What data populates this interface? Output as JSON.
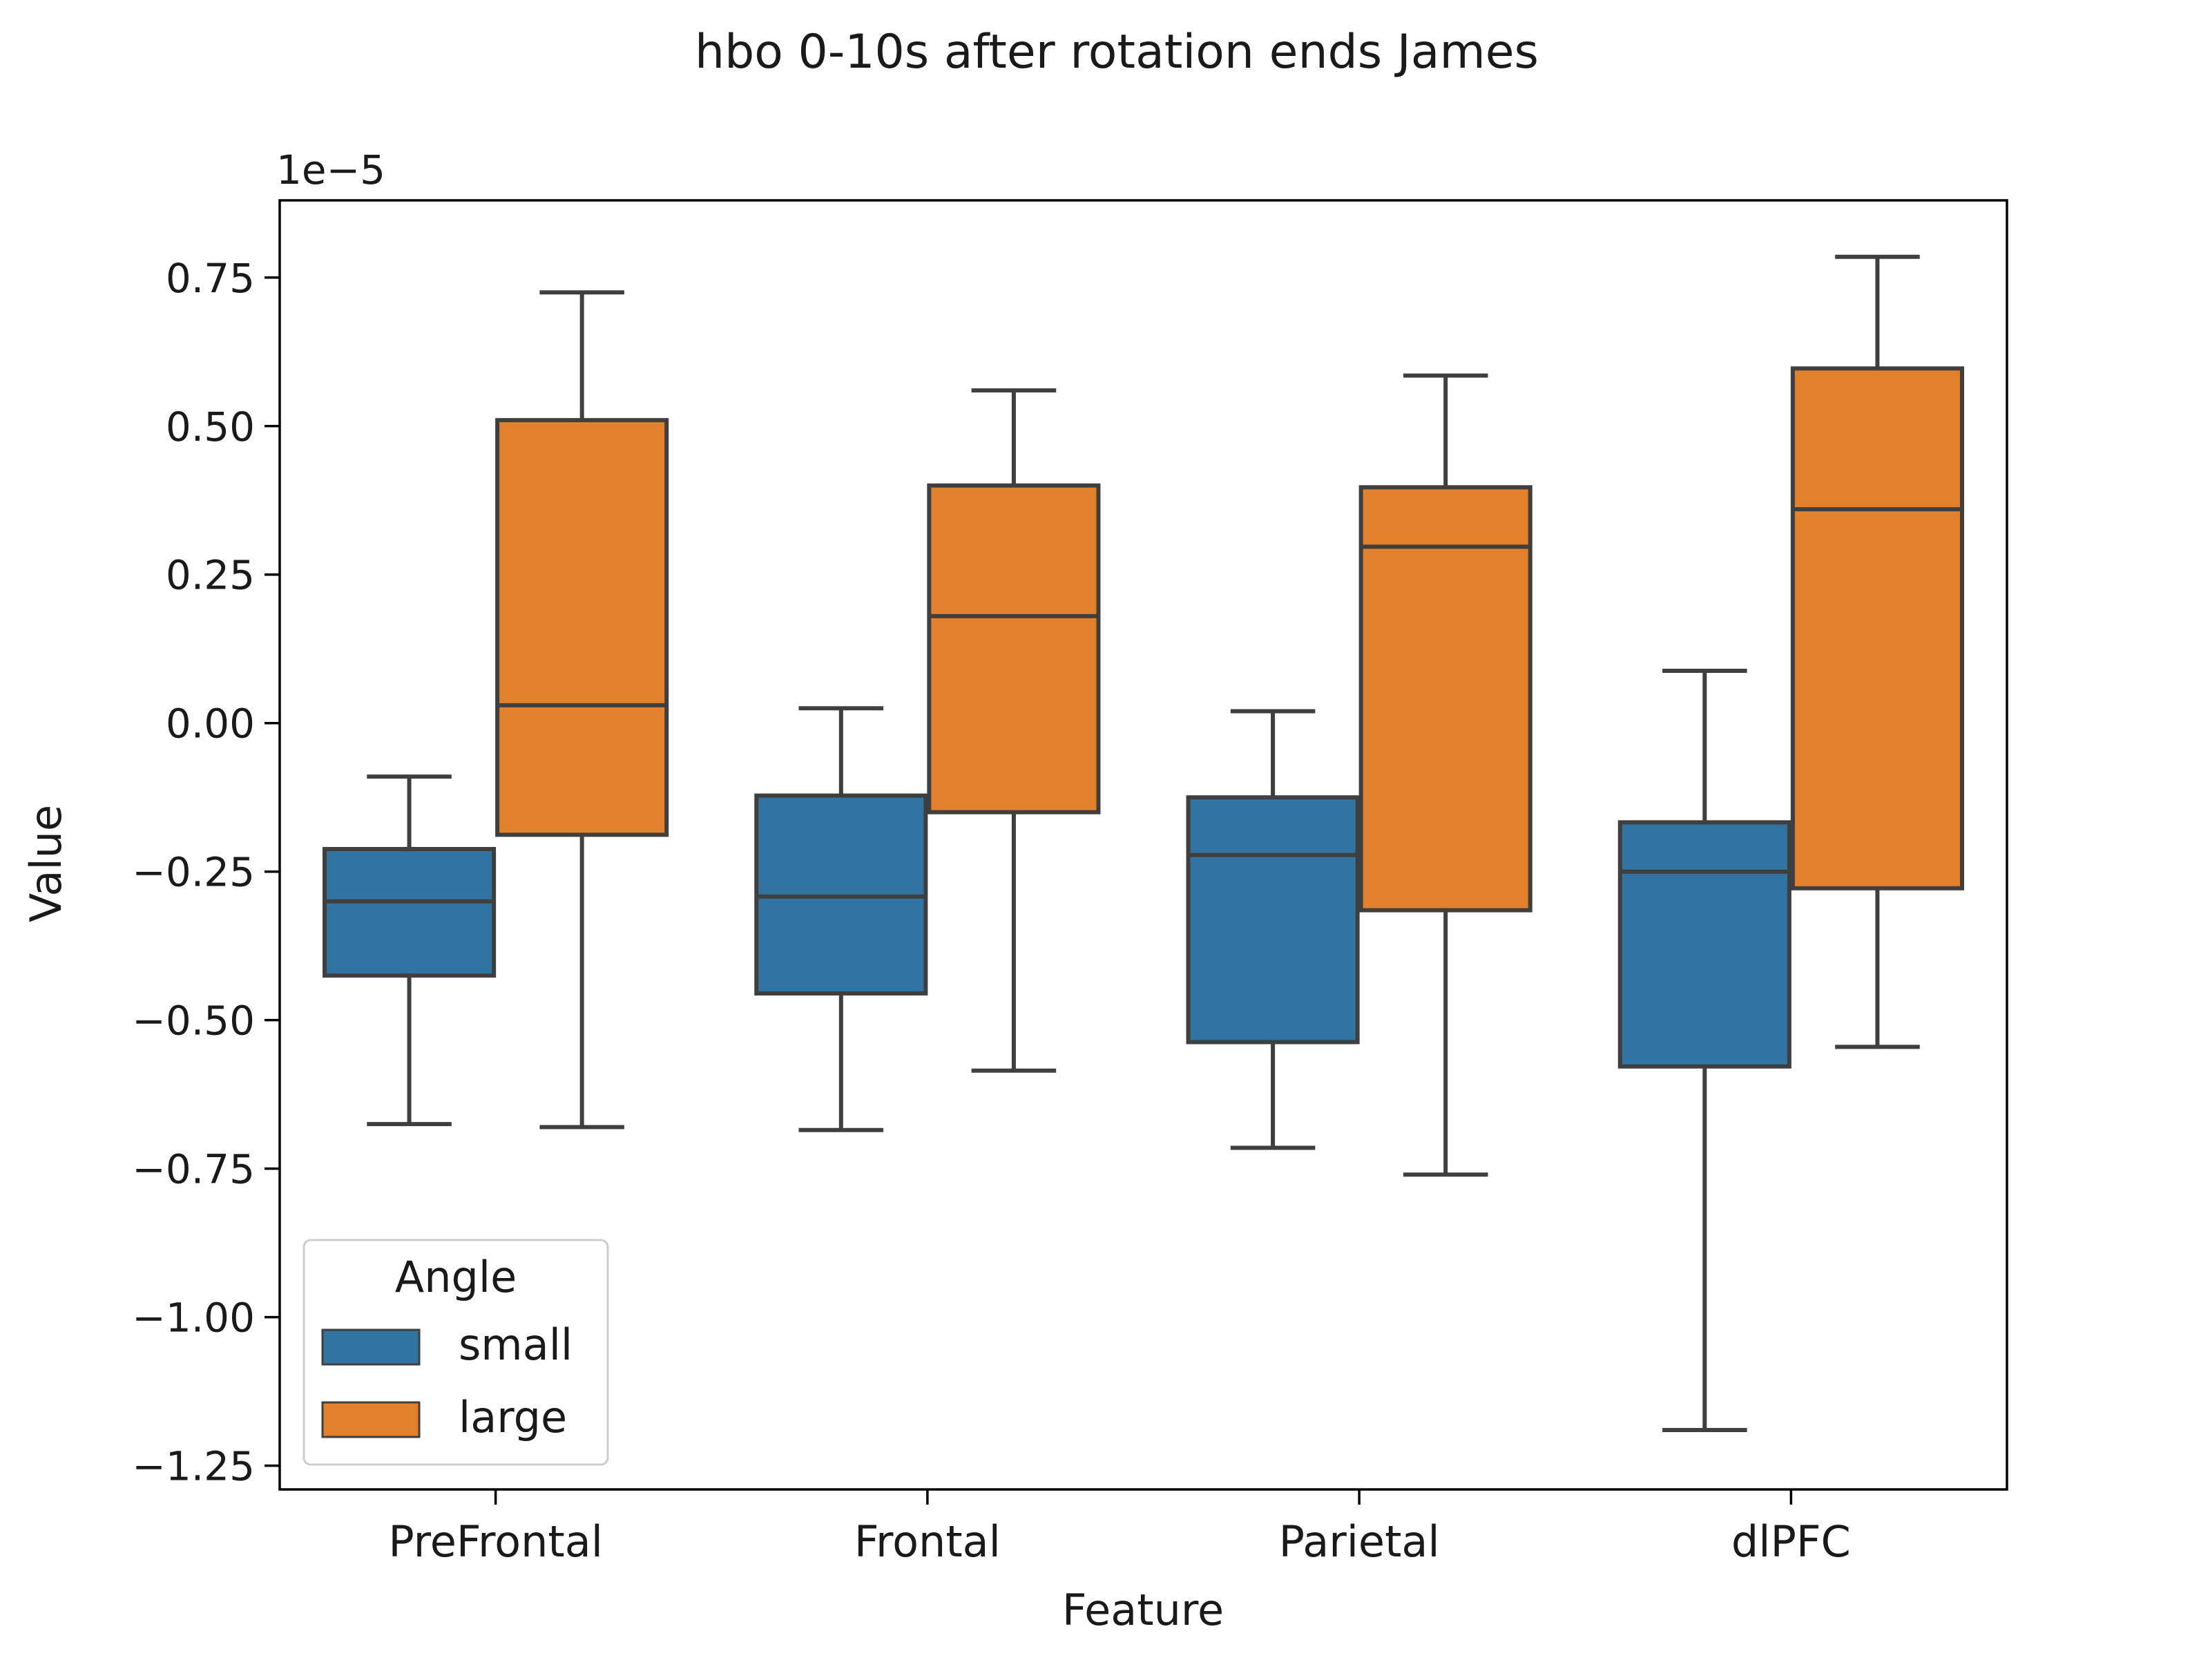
{
  "chart_data": {
    "type": "box",
    "title": "hbo 0-10s after rotation ends James",
    "xlabel": "Feature",
    "ylabel": "Value",
    "y_offset_label": "1e−5",
    "ylim": [
      -1.29,
      0.88
    ],
    "yticks": [
      0.75,
      0.5,
      0.25,
      0.0,
      -0.25,
      -0.5,
      -0.75,
      -1.0,
      -1.25
    ],
    "ytick_labels": [
      "0.75",
      "0.50",
      "0.25",
      "0.00",
      "−0.25",
      "−0.50",
      "−0.75",
      "−1.00",
      "−1.25"
    ],
    "categories": [
      "PreFrontal",
      "Frontal",
      "Parietal",
      "dlPFC"
    ],
    "series": [
      {
        "name": "small",
        "color": "#3274a1",
        "boxes": [
          {
            "whislo": -0.675,
            "q1": -0.425,
            "med": -0.3,
            "q3": -0.212,
            "whishi": -0.09
          },
          {
            "whislo": -0.685,
            "q1": -0.455,
            "med": -0.292,
            "q3": -0.122,
            "whishi": 0.025
          },
          {
            "whislo": -0.715,
            "q1": -0.537,
            "med": -0.222,
            "q3": -0.125,
            "whishi": 0.02
          },
          {
            "whislo": -1.19,
            "q1": -0.578,
            "med": -0.25,
            "q3": -0.167,
            "whishi": 0.088
          }
        ]
      },
      {
        "name": "large",
        "color": "#e1812c",
        "boxes": [
          {
            "whislo": -0.68,
            "q1": -0.188,
            "med": 0.03,
            "q3": 0.51,
            "whishi": 0.725
          },
          {
            "whislo": -0.585,
            "q1": -0.15,
            "med": 0.18,
            "q3": 0.4,
            "whishi": 0.56
          },
          {
            "whislo": -0.76,
            "q1": -0.315,
            "med": 0.297,
            "q3": 0.397,
            "whishi": 0.585
          },
          {
            "whislo": -0.545,
            "q1": -0.278,
            "med": 0.36,
            "q3": 0.597,
            "whishi": 0.785
          }
        ]
      }
    ],
    "legend": {
      "title": "Angle",
      "placement": "lower-left",
      "entries": [
        "small",
        "large"
      ]
    },
    "grid": false
  }
}
